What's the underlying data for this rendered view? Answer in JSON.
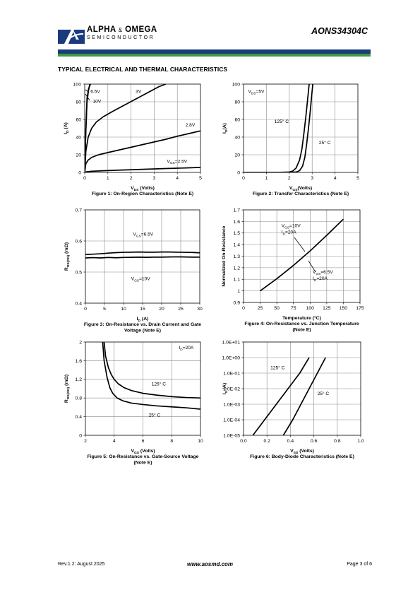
{
  "header": {
    "company": "ALPHA",
    "company_amp": "&",
    "company2": "OMEGA",
    "semiconductor": "SEMICONDUCTOR",
    "part_number": "AONS34304C",
    "brand_colors": {
      "blue": "#1a3b7d",
      "green": "#3d9a3d"
    }
  },
  "section_title": "TYPICAL ELECTRICAL AND THERMAL CHARACTERISTICS",
  "footer": {
    "revision": "Rev.1.2: August 2025",
    "website": "www.aosmd.com",
    "page": "Page 3 of 6"
  },
  "chart_data": [
    {
      "id": "fig1",
      "type": "line",
      "caption": [
        "Figure 1: On-Region Characteristics (Note E)"
      ],
      "xlabel": {
        "main": "V",
        "sub": "DS",
        "rest": " (Volts)"
      },
      "ylabel": {
        "main": "I",
        "sub": "D",
        "rest": " (A)"
      },
      "xlim": [
        0,
        5
      ],
      "ylim": [
        0,
        100
      ],
      "xticks": [
        0,
        1,
        2,
        3,
        4,
        5
      ],
      "yticks": [
        0,
        20,
        40,
        60,
        80,
        100
      ],
      "series": [
        {
          "name": "6.5V",
          "x": [
            0,
            0.04,
            0.1,
            0.16,
            0.22
          ],
          "y": [
            0,
            40,
            80,
            92,
            100
          ]
        },
        {
          "name": "10V",
          "x": [
            0,
            0.04,
            0.1,
            0.17,
            0.25
          ],
          "y": [
            0,
            42,
            84,
            95,
            100
          ]
        },
        {
          "name": "3V",
          "x": [
            0,
            0.05,
            0.15,
            0.3,
            0.5,
            0.8,
            1.2,
            1.7,
            2.2,
            2.7,
            3.2,
            3.5
          ],
          "y": [
            0,
            24,
            40,
            50,
            57,
            63,
            69,
            76,
            83,
            90,
            97,
            100
          ]
        },
        {
          "name": "2.8V",
          "x": [
            0,
            0.05,
            0.15,
            0.3,
            0.6,
            1.0,
            1.5,
            2.0,
            2.5,
            3.0,
            3.5,
            4.0,
            4.5,
            5.0
          ],
          "y": [
            0,
            10,
            14,
            17,
            20,
            22.5,
            25.5,
            28.5,
            31.5,
            34.5,
            37.5,
            41,
            44,
            47
          ]
        },
        {
          "name": "VGS=2.5V",
          "x": [
            0,
            0.1,
            0.3,
            0.8,
            1.5,
            2.5,
            3.5,
            4.5,
            5.0
          ],
          "y": [
            0,
            0.8,
            1.3,
            1.9,
            2.6,
            3.5,
            4.4,
            5.2,
            5.7
          ]
        }
      ],
      "labels": [
        {
          "text": "6.5V",
          "x": 0.25,
          "y": 90
        },
        {
          "text": "10V",
          "x": 0.35,
          "y": 79
        },
        {
          "text": "3V",
          "x": 2.2,
          "y": 90
        },
        {
          "text": "2.8V",
          "x": 4.35,
          "y": 52
        },
        {
          "main": "V",
          "sub": "GS",
          "rest": "=2.5V",
          "x": 3.55,
          "y": 11
        }
      ]
    },
    {
      "id": "fig2",
      "type": "line",
      "caption": [
        "Figure 2: Transfer Characteristics (Note E)"
      ],
      "xlabel": {
        "main": "V",
        "sub": "GS",
        "rest": "(Volts)"
      },
      "ylabel": {
        "main": "I",
        "sub": "D",
        "rest": "(A)"
      },
      "xlim": [
        0,
        5
      ],
      "ylim": [
        0,
        100
      ],
      "xticks": [
        0,
        1,
        2,
        3,
        4,
        5
      ],
      "yticks": [
        0,
        20,
        40,
        60,
        80,
        100
      ],
      "series": [
        {
          "name": "125°C",
          "x": [
            0,
            1.5,
            2.0,
            2.15,
            2.3,
            2.45,
            2.55,
            2.63,
            2.72,
            2.8,
            2.87
          ],
          "y": [
            0,
            0,
            0.4,
            1.5,
            5,
            14,
            26,
            42,
            62,
            82,
            100
          ]
        },
        {
          "name": "25°C",
          "x": [
            0,
            1.8,
            2.3,
            2.45,
            2.58,
            2.68,
            2.76,
            2.84,
            2.92,
            2.98,
            3.03
          ],
          "y": [
            0,
            0,
            0.4,
            2,
            7,
            17,
            32,
            50,
            70,
            87,
            100
          ]
        }
      ],
      "labels": [
        {
          "main": "V",
          "sub": "DS",
          "rest": "=5V",
          "x": 0.2,
          "y": 90
        },
        {
          "text": "125° C",
          "x": 1.35,
          "y": 56
        },
        {
          "text": "25° C",
          "x": 3.3,
          "y": 32
        }
      ]
    },
    {
      "id": "fig3",
      "type": "line",
      "caption": [
        "Figure 3: On-Resistance vs. Drain Current and Gate",
        "Voltage (Note E)"
      ],
      "xlabel": {
        "main": "I",
        "sub": "D",
        "rest": " (A)"
      },
      "ylabel": {
        "main": "R",
        "sub": "DS(ON)",
        "rest": " (mΩ)"
      },
      "xlim": [
        0,
        30
      ],
      "ylim": [
        0.4,
        0.7
      ],
      "xticks": [
        0,
        5,
        10,
        15,
        20,
        25,
        30
      ],
      "yticks": [
        0.4,
        0.5,
        0.6,
        0.7
      ],
      "series": [
        {
          "name": "VGS=6.5V",
          "x": [
            0,
            2,
            4,
            6,
            8,
            10,
            12,
            14,
            16,
            18,
            20,
            22,
            24,
            26,
            28,
            30
          ],
          "y": [
            0.5565,
            0.5575,
            0.559,
            0.561,
            0.5625,
            0.5635,
            0.564,
            0.5645,
            0.564,
            0.564,
            0.5645,
            0.5645,
            0.564,
            0.5635,
            0.563,
            0.562
          ]
        },
        {
          "name": "VGS=10V",
          "x": [
            0,
            2,
            4,
            6,
            8,
            10,
            12,
            14,
            16,
            18,
            20,
            22,
            24,
            26,
            28,
            30
          ],
          "y": [
            0.5455,
            0.5465,
            0.5455,
            0.547,
            0.546,
            0.547,
            0.5475,
            0.548,
            0.5475,
            0.548,
            0.548,
            0.5485,
            0.549,
            0.5485,
            0.548,
            0.548
          ]
        }
      ],
      "labels": [
        {
          "main": "V",
          "sub": "GS",
          "rest": "=6.5V",
          "x": 12.5,
          "y": 0.617
        },
        {
          "main": "V",
          "sub": "GS",
          "rest": "=10V",
          "x": 12,
          "y": 0.474
        }
      ]
    },
    {
      "id": "fig4",
      "type": "line",
      "caption": [
        "Figure 4: On-Resistance vs. Junction Temperature",
        "(Note E)"
      ],
      "xlabel": {
        "main": "Temperature (°C)"
      },
      "ylabel": {
        "main": "Normalized On-Resistance"
      },
      "xlim": [
        0,
        175
      ],
      "ylim": [
        0.9,
        1.7
      ],
      "xticks": [
        0,
        25,
        50,
        75,
        100,
        125,
        150,
        175
      ],
      "yticks": [
        0.9,
        1,
        1.1,
        1.2,
        1.3,
        1.4,
        1.5,
        1.6,
        1.7
      ],
      "series": [
        {
          "name": "On-Resistance",
          "x": [
            25,
            50,
            75,
            100,
            125,
            150
          ],
          "y": [
            1.0,
            1.105,
            1.22,
            1.345,
            1.48,
            1.62
          ]
        }
      ],
      "labels": [
        {
          "main": "V",
          "sub": "GS",
          "rest": "=10V",
          "x": 57,
          "y": 1.55
        },
        {
          "main": "I",
          "sub": "D",
          "rest": "=20A",
          "x": 57,
          "y": 1.495
        },
        {
          "main": "V",
          "sub": "GS",
          "rest": "=6.5V",
          "x": 104,
          "y": 1.15
        },
        {
          "main": "I",
          "sub": "D",
          "rest": "=20A",
          "x": 104,
          "y": 1.095
        }
      ]
    },
    {
      "id": "fig5",
      "type": "line",
      "caption": [
        "Figure 5: On-Resistance vs. Gate-Source Voltage",
        "(Note E)"
      ],
      "xlabel": {
        "main": "V",
        "sub": "GS",
        "rest": " (Volts)"
      },
      "ylabel": {
        "main": "R",
        "sub": "DS(ON)",
        "rest": " (mΩ)"
      },
      "xlim": [
        2,
        10
      ],
      "ylim": [
        0,
        2
      ],
      "xticks": [
        2,
        4,
        6,
        8,
        10
      ],
      "yticks": [
        0,
        0.4,
        0.8,
        1.2,
        1.6,
        2
      ],
      "series": [
        {
          "name": "125°C",
          "x": [
            3.3,
            3.4,
            3.6,
            3.8,
            4.0,
            4.3,
            4.7,
            5.2,
            6.0,
            7.0,
            8.0,
            9.0,
            10.0
          ],
          "y": [
            2.0,
            1.7,
            1.45,
            1.3,
            1.2,
            1.1,
            1.02,
            0.96,
            0.9,
            0.86,
            0.83,
            0.81,
            0.8
          ]
        },
        {
          "name": "25°C",
          "x": [
            3.2,
            3.3,
            3.5,
            3.7,
            3.9,
            4.2,
            4.6,
            5.2,
            6.0,
            7.0,
            8.0,
            9.0,
            10.0
          ],
          "y": [
            2.0,
            1.6,
            1.25,
            1.02,
            0.9,
            0.8,
            0.74,
            0.69,
            0.66,
            0.63,
            0.61,
            0.59,
            0.56
          ]
        }
      ],
      "labels": [
        {
          "main": "I",
          "sub": "D",
          "rest": "=20A",
          "x": 8.5,
          "y": 1.85
        },
        {
          "text": "125° C",
          "x": 6.6,
          "y": 1.07
        },
        {
          "text": "25° C",
          "x": 6.4,
          "y": 0.4
        }
      ]
    },
    {
      "id": "fig6",
      "type": "line",
      "caption": [
        "Figure 6: Body-Diode Characteristics (Note E)"
      ],
      "xlabel": {
        "main": "V",
        "sub": "SD",
        "rest": " (Volts)"
      },
      "ylabel": {
        "main": "I",
        "sub": "S",
        "rest": " (A)"
      },
      "xlim": [
        0,
        1
      ],
      "ylim": [
        1e-05,
        10
      ],
      "yscale": "log",
      "xticks": [
        0.0,
        0.2,
        0.4,
        0.6,
        0.8,
        1.0
      ],
      "xticklabels": [
        "0.0",
        "0.2",
        "0.4",
        "0.6",
        "0.8",
        "1.0"
      ],
      "yticks": [
        1e-05,
        0.0001,
        0.001,
        0.01,
        0.1,
        1,
        10
      ],
      "yticklabels": [
        "1.0E-05",
        "1.0E-04",
        "1.0E-03",
        "1.0E-02",
        "1.0E-01",
        "1.0E+00",
        "1.0E+01"
      ],
      "series": [
        {
          "name": "125°C",
          "x": [
            0.08,
            0.18,
            0.28,
            0.38,
            0.48,
            0.56
          ],
          "y": [
            1e-05,
            0.0001,
            0.001,
            0.01,
            0.1,
            1
          ]
        },
        {
          "name": "25°C",
          "x": [
            0.34,
            0.42,
            0.49,
            0.56,
            0.63,
            0.7
          ],
          "y": [
            1e-05,
            0.0001,
            0.001,
            0.01,
            0.1,
            1
          ]
        }
      ],
      "labels": [
        {
          "text": "125° C",
          "x": 0.23,
          "y": 0.18
        },
        {
          "text": "25° C",
          "x": 0.63,
          "y": 0.004
        }
      ]
    }
  ]
}
